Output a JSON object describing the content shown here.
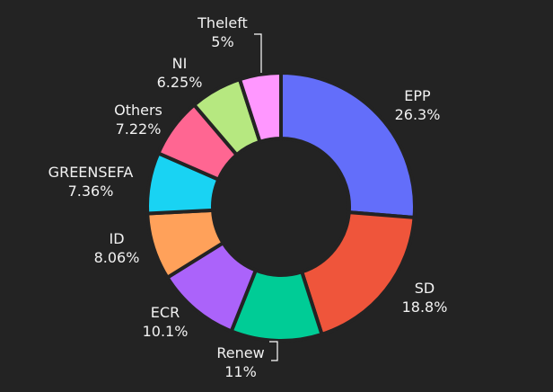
{
  "theme": {
    "background": "#232323",
    "text_color": "#f2f2f2",
    "separator_color": "#232323",
    "leader_color": "#ffffff"
  },
  "chart_data": {
    "type": "pie",
    "hole": true,
    "direction": "clockwise",
    "start_angle_deg": 0,
    "legend": "none",
    "slices": [
      {
        "label": "EPP",
        "value": 26.3,
        "text": "26.3%",
        "color": "#636efa"
      },
      {
        "label": "SD",
        "value": 18.8,
        "text": "18.8%",
        "color": "#ef553b"
      },
      {
        "label": "Renew",
        "value": 11,
        "text": "11%",
        "color": "#00cc96"
      },
      {
        "label": "ECR",
        "value": 10.1,
        "text": "10.1%",
        "color": "#ab63fa"
      },
      {
        "label": "ID",
        "value": 8.06,
        "text": "8.06%",
        "color": "#ffa15a"
      },
      {
        "label": "GREENSEFA",
        "value": 7.36,
        "text": "7.36%",
        "color": "#19d3f3"
      },
      {
        "label": "Others",
        "value": 7.22,
        "text": "7.22%",
        "color": "#ff6692"
      },
      {
        "label": "NI",
        "value": 6.25,
        "text": "6.25%",
        "color": "#b6e880"
      },
      {
        "label": "Theleft",
        "value": 5,
        "text": "5%",
        "color": "#ff97ff"
      }
    ]
  }
}
